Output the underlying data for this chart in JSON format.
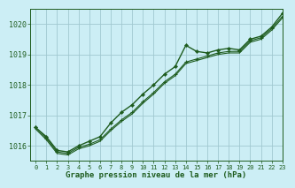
{
  "title": "Graphe pression niveau de la mer (hPa)",
  "bg_color": "#cceef5",
  "grid_color": "#a0c8d0",
  "line_color": "#1e5c1e",
  "xlim": [
    -0.5,
    23
  ],
  "ylim": [
    1015.5,
    1020.5
  ],
  "yticks": [
    1016,
    1017,
    1018,
    1019,
    1020
  ],
  "xticks": [
    0,
    1,
    2,
    3,
    4,
    5,
    6,
    7,
    8,
    9,
    10,
    11,
    12,
    13,
    14,
    15,
    16,
    17,
    18,
    19,
    20,
    21,
    22,
    23
  ],
  "series_main": [
    1016.6,
    1016.3,
    1015.85,
    1015.8,
    1016.0,
    1016.15,
    1016.3,
    1016.75,
    1017.1,
    1017.35,
    1017.7,
    1018.0,
    1018.35,
    1018.6,
    1019.3,
    1019.1,
    1019.05,
    1019.15,
    1019.2,
    1019.15,
    1019.5,
    1019.6,
    1019.9,
    1020.35
  ],
  "series_cross": [
    1016.6,
    1016.25,
    1015.8,
    1015.75,
    1015.95,
    1016.05,
    1016.2,
    1016.55,
    1016.85,
    1017.1,
    1017.45,
    1017.75,
    1018.1,
    1018.35,
    1018.75,
    1018.85,
    1018.95,
    1019.05,
    1019.1,
    1019.1,
    1019.45,
    1019.55,
    1019.85,
    1020.25
  ],
  "series_line": [
    1016.55,
    1016.2,
    1015.75,
    1015.7,
    1015.9,
    1016.0,
    1016.15,
    1016.5,
    1016.8,
    1017.05,
    1017.4,
    1017.7,
    1018.05,
    1018.3,
    1018.7,
    1018.8,
    1018.9,
    1019.0,
    1019.05,
    1019.05,
    1019.4,
    1019.5,
    1019.8,
    1020.2
  ]
}
